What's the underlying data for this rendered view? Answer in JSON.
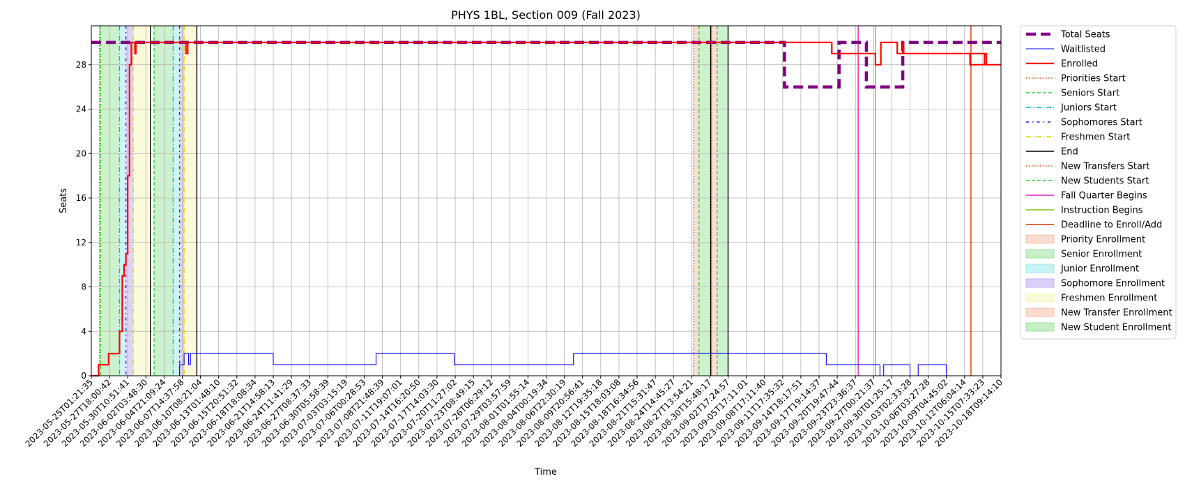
{
  "chart_data": {
    "type": "line",
    "title": "PHYS 1BL, Section 009 (Fall 2023)",
    "xlabel": "Time",
    "ylabel": "Seats",
    "ylim": [
      0,
      31.5
    ],
    "yticks": [
      0,
      4,
      8,
      12,
      16,
      20,
      24,
      28
    ],
    "grid": true,
    "legend_position": "outside right",
    "x_tick_labels": [
      "2023-05-25T01:21:35",
      "2023-05-27T18:00:42",
      "2023-05-30T10:51:41",
      "2023-06-02T03:48:30",
      "2023-06-04T21:09:24",
      "2023-06-07T14:37:58",
      "2023-06-10T08:21:04",
      "2023-06-13T01:48:10",
      "2023-06-15T20:51:32",
      "2023-06-18T18:08:34",
      "2023-06-21T14:58:13",
      "2023-06-24T11:41:29",
      "2023-06-27T08:37:33",
      "2023-06-30T05:58:39",
      "2023-07-03T03:15:19",
      "2023-07-06T00:28:53",
      "2023-07-08T21:48:39",
      "2023-07-11T19:07:01",
      "2023-07-14T16:20:50",
      "2023-07-17T14:03:30",
      "2023-07-20T11:27:02",
      "2023-07-23T08:49:15",
      "2023-07-26T06:29:12",
      "2023-07-29T03:57:59",
      "2023-08-01T01:55:14",
      "2023-08-04T00:19:34",
      "2023-08-06T22:30:19",
      "2023-08-09T20:56:41",
      "2023-08-12T19:35:18",
      "2023-08-15T18:03:08",
      "2023-08-18T16:34:56",
      "2023-08-21T15:31:47",
      "2023-08-24T14:45:27",
      "2023-08-27T13:54:21",
      "2023-08-30T15:48:17",
      "2023-09-02T17:24:57",
      "2023-09-05T17:11:01",
      "2023-09-08T17:11:40",
      "2023-09-11T17:35:32",
      "2023-09-14T18:17:51",
      "2023-09-17T19:14:37",
      "2023-09-20T19:47:44",
      "2023-09-23T23:36:37",
      "2023-09-27T00:21:37",
      "2023-09-30T01:25:17",
      "2023-10-03T02:33:28",
      "2023-10-06T03:27:28",
      "2023-10-09T04:45:02",
      "2023-10-12T06:04:14",
      "2023-10-15T07:33:23",
      "2023-10-18T09:14:10"
    ],
    "series": [
      {
        "name": "Total Seats",
        "color": "#800080",
        "style": "dashed-thick",
        "points": [
          [
            0,
            30
          ],
          [
            38.1,
            30
          ],
          [
            38.1,
            26
          ],
          [
            41.1,
            26
          ],
          [
            41.1,
            30
          ],
          [
            42.6,
            30
          ],
          [
            42.6,
            26
          ],
          [
            44.6,
            26
          ],
          [
            44.6,
            30
          ],
          [
            50,
            30
          ]
        ]
      },
      {
        "name": "Waitlisted",
        "color": "#0000ff",
        "style": "solid-thin",
        "points": [
          [
            0,
            0
          ],
          [
            4.85,
            0
          ],
          [
            4.85,
            1
          ],
          [
            5.1,
            1
          ],
          [
            5.1,
            2
          ],
          [
            5.35,
            2
          ],
          [
            5.35,
            1
          ],
          [
            5.45,
            1
          ],
          [
            5.45,
            2
          ],
          [
            10,
            2
          ],
          [
            10,
            1
          ],
          [
            15.65,
            1
          ],
          [
            15.65,
            2
          ],
          [
            19.95,
            2
          ],
          [
            19.95,
            1
          ],
          [
            26.5,
            1
          ],
          [
            26.5,
            2
          ],
          [
            40.4,
            2
          ],
          [
            40.4,
            1
          ],
          [
            43.35,
            1
          ],
          [
            43.35,
            0
          ],
          [
            43.55,
            0
          ],
          [
            43.55,
            1
          ],
          [
            45,
            1
          ],
          [
            45,
            0
          ],
          [
            45.45,
            0
          ],
          [
            45.45,
            1
          ],
          [
            47,
            1
          ],
          [
            47,
            0
          ],
          [
            50,
            0
          ]
        ]
      },
      {
        "name": "Enrolled",
        "color": "#ff0000",
        "style": "solid-thick",
        "points": [
          [
            0,
            0
          ],
          [
            0.4,
            0
          ],
          [
            0.4,
            1
          ],
          [
            0.95,
            1
          ],
          [
            0.95,
            2
          ],
          [
            1.55,
            2
          ],
          [
            1.55,
            4
          ],
          [
            1.7,
            4
          ],
          [
            1.7,
            9
          ],
          [
            1.8,
            9
          ],
          [
            1.8,
            10
          ],
          [
            1.9,
            10
          ],
          [
            1.9,
            11
          ],
          [
            2.0,
            11
          ],
          [
            2.0,
            18
          ],
          [
            2.1,
            18
          ],
          [
            2.1,
            28
          ],
          [
            2.2,
            28
          ],
          [
            2.2,
            30
          ],
          [
            2.4,
            30
          ],
          [
            2.4,
            29
          ],
          [
            2.45,
            29
          ],
          [
            2.45,
            30
          ],
          [
            5.2,
            30
          ],
          [
            5.2,
            29
          ],
          [
            5.3,
            29
          ],
          [
            5.3,
            30
          ],
          [
            40.7,
            30
          ],
          [
            40.7,
            29
          ],
          [
            43.1,
            29
          ],
          [
            43.1,
            28
          ],
          [
            43.4,
            28
          ],
          [
            43.4,
            30
          ],
          [
            44.3,
            30
          ],
          [
            44.3,
            29
          ],
          [
            44.6,
            29
          ],
          [
            44.6,
            30
          ],
          [
            44.65,
            30
          ],
          [
            44.65,
            29
          ],
          [
            49.1,
            29
          ],
          [
            49.1,
            28
          ],
          [
            49.2,
            28
          ],
          [
            49.2,
            29
          ],
          [
            48.3,
            29
          ],
          [
            48.3,
            28
          ],
          [
            50,
            28
          ]
        ]
      }
    ],
    "vertical_lines": [
      {
        "name": "Priorities Start",
        "color": "#ff4500",
        "style": "dotted",
        "x": [
          0.45,
          33.1
        ]
      },
      {
        "name": "Seniors Start",
        "color": "#32cd32",
        "style": "dashed",
        "x": [
          0.5,
          3.45,
          33.4
        ]
      },
      {
        "name": "Juniors Start",
        "color": "#00bfbf",
        "style": "dashdot",
        "x": [
          1.55,
          4.5
        ]
      },
      {
        "name": "Sophomores Start",
        "color": "#4000ff",
        "style": "dashdot-sparse",
        "x": [
          1.9,
          4.85
        ]
      },
      {
        "name": "Freshmen Start",
        "color": "#d4d400",
        "style": "dashdot",
        "x": [
          2.3,
          5.1
        ]
      },
      {
        "name": "End",
        "color": "#000000",
        "style": "solid",
        "x": [
          3.25,
          5.8,
          34.05,
          35.0
        ]
      },
      {
        "name": "New Transfers Start",
        "color": "#ff4500",
        "style": "dotted",
        "x": [
          34.1
        ]
      },
      {
        "name": "New Students Start",
        "color": "#32cd32",
        "style": "dashed",
        "x": [
          34.4
        ]
      },
      {
        "name": "Fall Quarter Begins",
        "color": "#e020b0",
        "style": "solid",
        "x": [
          42.15
        ]
      },
      {
        "name": "Instruction Begins",
        "color": "#80c000",
        "style": "solid",
        "x": [
          43.1
        ]
      },
      {
        "name": "Deadline to Enroll/Add",
        "color": "#e03000",
        "style": "solid",
        "x": [
          48.35
        ]
      }
    ],
    "shaded_regions": [
      {
        "name": "Priority Enrollment",
        "color": "#f4b8a0",
        "spans": [
          [
            0.45,
            0.5
          ],
          [
            33.1,
            33.4
          ]
        ]
      },
      {
        "name": "Senior Enrollment",
        "color": "#90e090",
        "spans": [
          [
            0.5,
            1.55
          ],
          [
            3.45,
            4.5
          ]
        ]
      },
      {
        "name": "Junior Enrollment",
        "color": "#90e8e8",
        "spans": [
          [
            1.55,
            1.9
          ],
          [
            4.5,
            4.85
          ]
        ]
      },
      {
        "name": "Sophomore Enrollment",
        "color": "#b8a0f0",
        "spans": [
          [
            1.9,
            2.3
          ],
          [
            4.85,
            5.1
          ]
        ]
      },
      {
        "name": "Freshmen Enrollment",
        "color": "#f4f4b0",
        "spans": [
          [
            2.3,
            3.25
          ],
          [
            5.1,
            5.8
          ]
        ]
      },
      {
        "name": "New Transfer Enrollment",
        "color": "#f4b8a0",
        "spans": [
          [
            34.1,
            34.4
          ]
        ]
      },
      {
        "name": "New Student Enrollment",
        "color": "#90e090",
        "spans": [
          [
            33.4,
            34.05
          ],
          [
            34.4,
            35.0
          ]
        ]
      }
    ],
    "legend": [
      {
        "label": "Total Seats",
        "kind": "line",
        "color": "#800080",
        "style": "dashed-thick"
      },
      {
        "label": "Waitlisted",
        "kind": "line",
        "color": "#0000ff",
        "style": "solid-thin"
      },
      {
        "label": "Enrolled",
        "kind": "line",
        "color": "#ff0000",
        "style": "solid-thick"
      },
      {
        "label": "Priorities Start",
        "kind": "line",
        "color": "#ff4500",
        "style": "dotted"
      },
      {
        "label": "Seniors Start",
        "kind": "line",
        "color": "#32cd32",
        "style": "dashed"
      },
      {
        "label": "Juniors Start",
        "kind": "line",
        "color": "#00bfbf",
        "style": "dashdot"
      },
      {
        "label": "Sophomores Start",
        "kind": "line",
        "color": "#4000ff",
        "style": "dashdot-sparse"
      },
      {
        "label": "Freshmen Start",
        "kind": "line",
        "color": "#d4d400",
        "style": "dashdot"
      },
      {
        "label": "End",
        "kind": "line",
        "color": "#000000",
        "style": "solid"
      },
      {
        "label": "New Transfers Start",
        "kind": "line",
        "color": "#ff4500",
        "style": "dotted"
      },
      {
        "label": "New Students Start",
        "kind": "line",
        "color": "#32cd32",
        "style": "dashed"
      },
      {
        "label": "Fall Quarter Begins",
        "kind": "line",
        "color": "#e020b0",
        "style": "solid"
      },
      {
        "label": "Instruction Begins",
        "kind": "line",
        "color": "#80c000",
        "style": "solid"
      },
      {
        "label": "Deadline to Enroll/Add",
        "kind": "line",
        "color": "#e03000",
        "style": "solid"
      },
      {
        "label": "Priority Enrollment",
        "kind": "patch",
        "color": "#f4b8a0"
      },
      {
        "label": "Senior Enrollment",
        "kind": "patch",
        "color": "#90e090"
      },
      {
        "label": "Junior Enrollment",
        "kind": "patch",
        "color": "#90e8e8"
      },
      {
        "label": "Sophomore Enrollment",
        "kind": "patch",
        "color": "#b8a0f0"
      },
      {
        "label": "Freshmen Enrollment",
        "kind": "patch",
        "color": "#f4f4b0"
      },
      {
        "label": "New Transfer Enrollment",
        "kind": "patch",
        "color": "#f4b8a0"
      },
      {
        "label": "New Student Enrollment",
        "kind": "patch",
        "color": "#90e090"
      }
    ]
  }
}
